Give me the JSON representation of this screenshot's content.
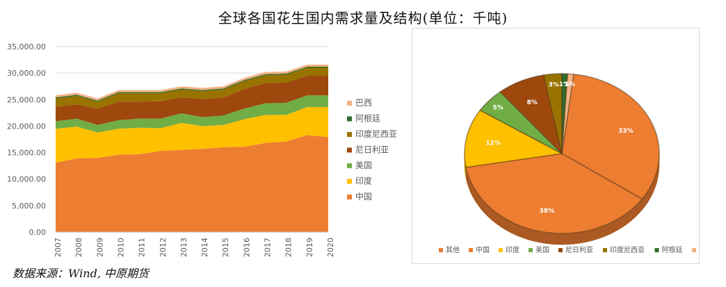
{
  "page": {
    "title": "全球各国花生国内需求量及结构(单位：千吨)",
    "source": "数据来源：Wind, 中原期货"
  },
  "colors": {
    "中国": "#ED7D31",
    "印度": "#FFC000",
    "美国": "#70AD47",
    "尼日利亚": "#9E480E",
    "印度尼西亚": "#997300",
    "阿根廷": "#2E6B2A",
    "巴西": "#F4B183",
    "其他": "#ED7D31"
  },
  "chart_data": [
    {
      "type": "area",
      "stacked": true,
      "x": [
        "2007",
        "2008",
        "2009",
        "2010",
        "2011",
        "2012",
        "2013",
        "2014",
        "2015",
        "2016",
        "2017",
        "2018",
        "2019",
        "2020"
      ],
      "series": [
        {
          "name": "中国",
          "values": [
            13100,
            13900,
            14000,
            14600,
            14700,
            15300,
            15500,
            15700,
            16000,
            16100,
            16800,
            17100,
            18300,
            17900
          ]
        },
        {
          "name": "印度",
          "values": [
            6400,
            6000,
            4800,
            4900,
            5000,
            4300,
            5100,
            4300,
            4200,
            5200,
            5300,
            5000,
            5300,
            5700
          ]
        },
        {
          "name": "美国",
          "values": [
            1400,
            1500,
            1400,
            1600,
            1700,
            1800,
            1800,
            1700,
            1800,
            2000,
            2200,
            2300,
            2200,
            2200
          ]
        },
        {
          "name": "尼日利亚",
          "values": [
            2800,
            2700,
            3100,
            3500,
            3200,
            3300,
            3000,
            3400,
            3400,
            3700,
            3800,
            3800,
            3700,
            3700
          ]
        },
        {
          "name": "印度尼西亚",
          "values": [
            1500,
            1600,
            1300,
            1600,
            1600,
            1500,
            1500,
            1500,
            1500,
            1500,
            1500,
            1500,
            1500,
            1500
          ]
        },
        {
          "name": "阿根廷",
          "values": [
            200,
            200,
            200,
            200,
            200,
            200,
            200,
            200,
            200,
            200,
            200,
            200,
            200,
            200
          ]
        },
        {
          "name": "巴西",
          "values": [
            400,
            400,
            400,
            400,
            400,
            400,
            400,
            400,
            400,
            400,
            400,
            400,
            400,
            400
          ]
        }
      ],
      "ylim": [
        0,
        35000
      ],
      "yticks": [
        "0.00",
        "5,000.00",
        "10,000.00",
        "15,000.00",
        "20,000.00",
        "25,000.00",
        "30,000.00",
        "35,000.00"
      ],
      "grid": true,
      "legend_position": "right",
      "legend_order": [
        "巴西",
        "阿根廷",
        "印度尼西亚",
        "尼日利亚",
        "美国",
        "印度",
        "中国"
      ]
    },
    {
      "type": "pie",
      "style": "3d",
      "categories": [
        "其他",
        "中国",
        "印度",
        "美国",
        "尼日利亚",
        "印度尼西亚",
        "阿根廷",
        "巴西"
      ],
      "values": [
        33,
        38,
        12,
        5,
        8,
        3,
        1,
        1
      ],
      "labels": [
        "33%",
        "38%",
        "12%",
        "5%",
        "8%",
        "3%",
        "1%",
        "1%"
      ],
      "legend_position": "bottom"
    }
  ]
}
